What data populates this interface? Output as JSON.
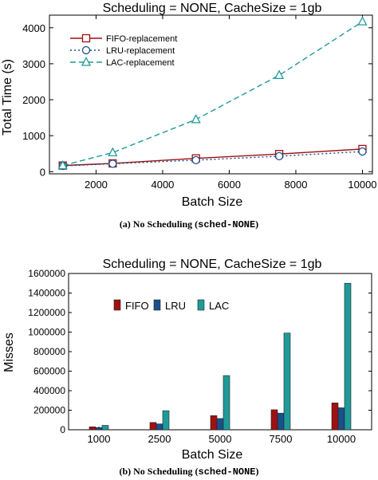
{
  "colors": {
    "fifo": "#a01010",
    "lru": "#1a4f8c",
    "lac": "#1e9b99"
  },
  "chart_data": [
    {
      "type": "line",
      "title": "Scheduling = NONE, CacheSize = 1gb",
      "xlabel": "Batch Size",
      "ylabel": "Total Time (s)",
      "xlim": [
        600,
        10300
      ],
      "ylim": [
        -60,
        4350
      ],
      "xticks": [
        2000,
        4000,
        6000,
        8000,
        10000
      ],
      "yticks": [
        0,
        1000,
        2000,
        3000,
        4000
      ],
      "x": [
        1000,
        2500,
        5000,
        7500,
        10000
      ],
      "series": [
        {
          "name": "FIFO-replacement",
          "values": [
            170,
            230,
            370,
            490,
            630
          ],
          "color": "#a01010",
          "marker": "square",
          "dash": "solid"
        },
        {
          "name": "LRU-replacement",
          "values": [
            160,
            220,
            320,
            430,
            560
          ],
          "color": "#1a4f8c",
          "marker": "circle",
          "dash": "dotted"
        },
        {
          "name": "LAC-replacement",
          "values": [
            170,
            530,
            1450,
            2680,
            4170
          ],
          "color": "#1e9b99",
          "marker": "triangle",
          "dash": "dashed"
        }
      ],
      "legend": "top-left",
      "grid": false,
      "caption": {
        "prefix": "(a) No Scheduling (",
        "code": "sched-NONE",
        "suffix": ")"
      }
    },
    {
      "type": "bar",
      "title": "Scheduling = NONE, CacheSize = 1gb",
      "xlabel": "Batch Size",
      "ylabel": "Misses",
      "ylim": [
        0,
        1600000
      ],
      "yticks": [
        0,
        200000,
        400000,
        600000,
        800000,
        1000000,
        1200000,
        1400000,
        1600000
      ],
      "categories": [
        "1000",
        "2500",
        "5000",
        "7500",
        "10000"
      ],
      "series": [
        {
          "name": "FIFO",
          "values": [
            30000,
            75000,
            145000,
            205000,
            275000
          ],
          "color": "#a01010"
        },
        {
          "name": "LRU",
          "values": [
            22000,
            60000,
            115000,
            170000,
            225000
          ],
          "color": "#1a4f8c"
        },
        {
          "name": "LAC",
          "values": [
            45000,
            195000,
            555000,
            990000,
            1500000
          ],
          "color": "#1e9b99"
        }
      ],
      "legend": "top-left",
      "grid": false,
      "caption": {
        "prefix": "(b) No Scheduling (",
        "code": "sched-NONE",
        "suffix": ")"
      }
    }
  ]
}
